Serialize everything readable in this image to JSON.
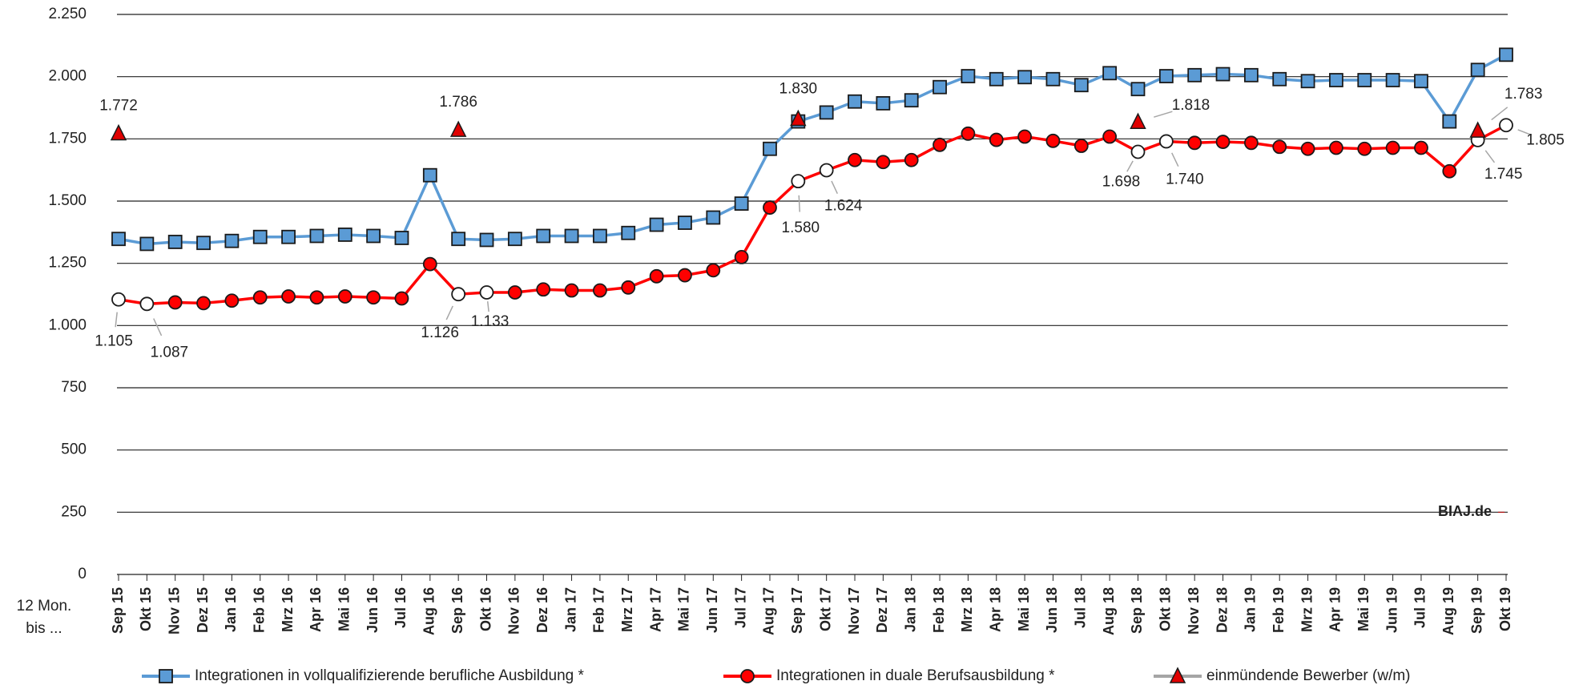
{
  "chart_data": {
    "type": "line",
    "categories": [
      "Sep 15",
      "Okt 15",
      "Nov 15",
      "Dez 15",
      "Jan 16",
      "Feb 16",
      "Mrz 16",
      "Apr 16",
      "Mai 16",
      "Jun 16",
      "Jul 16",
      "Aug 16",
      "Sep 16",
      "Okt 16",
      "Nov 16",
      "Dez 16",
      "Jan 17",
      "Feb 17",
      "Mrz 17",
      "Apr 17",
      "Mai 17",
      "Jun 17",
      "Jul 17",
      "Aug 17",
      "Sep 17",
      "Okt 17",
      "Nov 17",
      "Dez 17",
      "Jan 18",
      "Feb 18",
      "Mrz 18",
      "Apr 18",
      "Mai 18",
      "Jun 18",
      "Jul 18",
      "Aug 18",
      "Sep 18",
      "Okt 18",
      "Nov 18",
      "Dez 18",
      "Jan 19",
      "Feb 19",
      "Mrz 19",
      "Apr 19",
      "Mai 19",
      "Jun 19",
      "Jul 19",
      "Aug 19",
      "Sep 19",
      "Okt 19"
    ],
    "x_axis_label": "12 Mon. bis ...",
    "annotation": "BIAJ.de",
    "series": [
      {
        "name": "Integrationen in vollqualifizierende berufliche Ausbildung *",
        "color": "#5b9bd5",
        "marker": "square",
        "values": [
          1348,
          1328,
          1336,
          1332,
          1340,
          1356,
          1356,
          1360,
          1365,
          1360,
          1352,
          1604,
          1348,
          1344,
          1348,
          1360,
          1360,
          1360,
          1372,
          1405,
          1413,
          1434,
          1490,
          1710,
          1820,
          1856,
          1900,
          1893,
          1905,
          1958,
          2002,
          1990,
          1998,
          1990,
          1966,
          2014,
          1950,
          2002,
          2006,
          2010,
          2006,
          1990,
          1982,
          1986,
          1986,
          1986,
          1982,
          1820,
          2027,
          2088
        ]
      },
      {
        "name": "Integrationen in duale Berufsausbildung *",
        "color": "#ff0000",
        "marker": "circle",
        "values": [
          1105,
          1087,
          1093,
          1090,
          1100,
          1113,
          1117,
          1113,
          1117,
          1113,
          1109,
          1247,
          1126,
          1133,
          1133,
          1145,
          1141,
          1141,
          1153,
          1198,
          1202,
          1222,
          1275,
          1474,
          1580,
          1624,
          1665,
          1657,
          1665,
          1726,
          1771,
          1746,
          1759,
          1742,
          1722,
          1759,
          1698,
          1740,
          1734,
          1738,
          1734,
          1718,
          1710,
          1714,
          1710,
          1714,
          1714,
          1620,
          1745,
          1805
        ],
        "value_labels": [
          "1.105",
          "1.087",
          null,
          null,
          null,
          null,
          null,
          null,
          null,
          null,
          null,
          null,
          "1.126",
          "1.133",
          null,
          null,
          null,
          null,
          null,
          null,
          null,
          null,
          null,
          null,
          "1.580",
          "1.624",
          null,
          null,
          null,
          null,
          null,
          null,
          null,
          null,
          null,
          null,
          "1.698",
          "1.740",
          null,
          null,
          null,
          null,
          null,
          null,
          null,
          null,
          null,
          null,
          "1.745",
          "1.805"
        ]
      },
      {
        "name": "einmündende Bewerber (w/m)",
        "color": "#a5a5a5",
        "marker": "triangle",
        "marker_color": "#e00000",
        "values": [
          1772,
          null,
          null,
          null,
          null,
          null,
          null,
          null,
          null,
          null,
          null,
          null,
          1786,
          null,
          null,
          null,
          null,
          null,
          null,
          null,
          null,
          null,
          null,
          null,
          1830,
          null,
          null,
          null,
          null,
          null,
          null,
          null,
          null,
          null,
          null,
          null,
          1818,
          null,
          null,
          null,
          null,
          null,
          null,
          null,
          null,
          null,
          null,
          null,
          1783,
          null
        ],
        "value_labels": [
          "1.772",
          null,
          null,
          null,
          null,
          null,
          null,
          null,
          null,
          null,
          null,
          null,
          "1.786",
          null,
          null,
          null,
          null,
          null,
          null,
          null,
          null,
          null,
          null,
          null,
          "1.830",
          null,
          null,
          null,
          null,
          null,
          null,
          null,
          null,
          null,
          null,
          null,
          "1.818",
          null,
          null,
          null,
          null,
          null,
          null,
          null,
          null,
          null,
          null,
          null,
          "1.783",
          null
        ]
      }
    ],
    "ylim": [
      0,
      2250
    ],
    "yticks": [
      0,
      250,
      500,
      750,
      {
        "value": 1000,
        "label": "1.000"
      },
      {
        "value": 1250,
        "label": "1.250"
      },
      {
        "value": 1500,
        "label": "1.500"
      },
      {
        "value": 1750,
        "label": "1.750"
      },
      {
        "value": 2000,
        "label": "2.000"
      },
      {
        "value": 2250,
        "label": "2.250"
      }
    ],
    "grid": true,
    "legend": "bottom"
  }
}
